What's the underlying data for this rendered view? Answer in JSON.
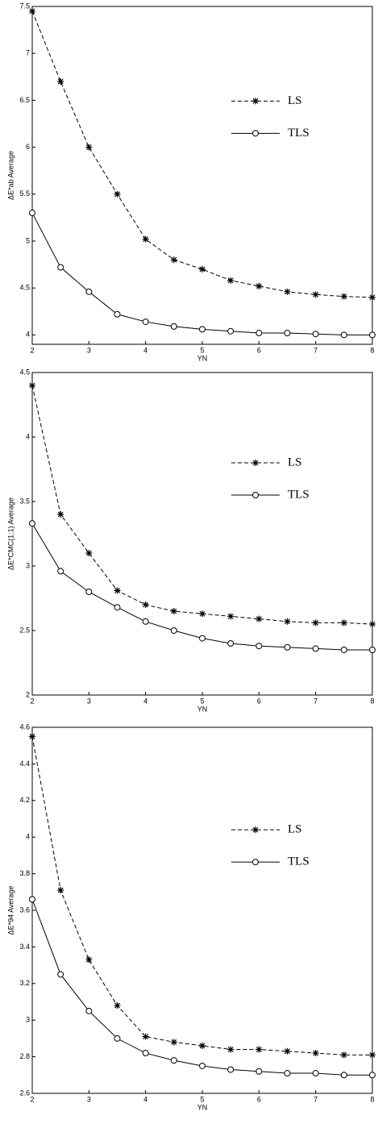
{
  "chart_data": [
    {
      "type": "line",
      "xlabel": "YN",
      "ylabel": "ΔE*ab Average",
      "x": [
        2,
        2.5,
        3,
        3.5,
        4,
        4.5,
        5,
        5.5,
        6,
        6.5,
        7,
        7.5,
        8
      ],
      "xlim": [
        2,
        8
      ],
      "xticks": [
        2,
        3,
        4,
        5,
        6,
        7,
        8
      ],
      "ylim": [
        3.9,
        7.5
      ],
      "yticks": [
        4,
        4.5,
        5,
        5.5,
        6,
        6.5,
        7,
        7.5
      ],
      "legend": "upper right",
      "series": [
        {
          "name": "LS",
          "color": "#000000",
          "linestyle": "dashed",
          "marker": "*",
          "values": [
            7.45,
            6.7,
            6.0,
            5.5,
            5.02,
            4.8,
            4.7,
            4.58,
            4.52,
            4.46,
            4.43,
            4.41,
            4.4
          ]
        },
        {
          "name": "TLS",
          "color": "#000000",
          "linestyle": "solid",
          "marker": "o",
          "values": [
            5.3,
            4.72,
            4.46,
            4.22,
            4.14,
            4.09,
            4.06,
            4.04,
            4.02,
            4.02,
            4.01,
            4.0,
            4.0
          ]
        }
      ]
    },
    {
      "type": "line",
      "xlabel": "YN",
      "ylabel": "ΔE*CMC(1:1) Average",
      "x": [
        2,
        2.5,
        3,
        3.5,
        4,
        4.5,
        5,
        5.5,
        6,
        6.5,
        7,
        7.5,
        8
      ],
      "xlim": [
        2,
        8
      ],
      "xticks": [
        2,
        3,
        4,
        5,
        6,
        7,
        8
      ],
      "ylim": [
        2,
        4.5
      ],
      "yticks": [
        2,
        2.5,
        3,
        3.5,
        4,
        4.5
      ],
      "legend": "upper right",
      "series": [
        {
          "name": "LS",
          "color": "#000000",
          "linestyle": "dashed",
          "marker": "*",
          "values": [
            4.4,
            3.4,
            3.1,
            2.81,
            2.7,
            2.65,
            2.63,
            2.61,
            2.59,
            2.57,
            2.56,
            2.56,
            2.55
          ]
        },
        {
          "name": "TLS",
          "color": "#000000",
          "linestyle": "solid",
          "marker": "o",
          "values": [
            3.33,
            2.96,
            2.8,
            2.68,
            2.57,
            2.5,
            2.44,
            2.4,
            2.38,
            2.37,
            2.36,
            2.35,
            2.35
          ]
        }
      ]
    },
    {
      "type": "line",
      "xlabel": "YN",
      "ylabel": "ΔE*94 Average",
      "x": [
        2,
        2.5,
        3,
        3.5,
        4,
        4.5,
        5,
        5.5,
        6,
        6.5,
        7,
        7.5,
        8
      ],
      "xlim": [
        2,
        8
      ],
      "xticks": [
        2,
        3,
        4,
        5,
        6,
        7,
        8
      ],
      "ylim": [
        2.6,
        4.6
      ],
      "yticks": [
        2.6,
        2.8,
        3,
        3.2,
        3.4,
        3.6,
        3.8,
        4,
        4.2,
        4.4,
        4.6
      ],
      "legend": "upper right",
      "series": [
        {
          "name": "LS",
          "color": "#000000",
          "linestyle": "dashed",
          "marker": "*",
          "values": [
            4.55,
            3.71,
            3.33,
            3.08,
            2.91,
            2.88,
            2.86,
            2.84,
            2.84,
            2.83,
            2.82,
            2.81,
            2.81
          ]
        },
        {
          "name": "TLS",
          "color": "#000000",
          "linestyle": "solid",
          "marker": "o",
          "values": [
            3.66,
            3.25,
            3.05,
            2.9,
            2.82,
            2.78,
            2.75,
            2.73,
            2.72,
            2.71,
            2.71,
            2.7,
            2.7
          ]
        }
      ]
    }
  ]
}
